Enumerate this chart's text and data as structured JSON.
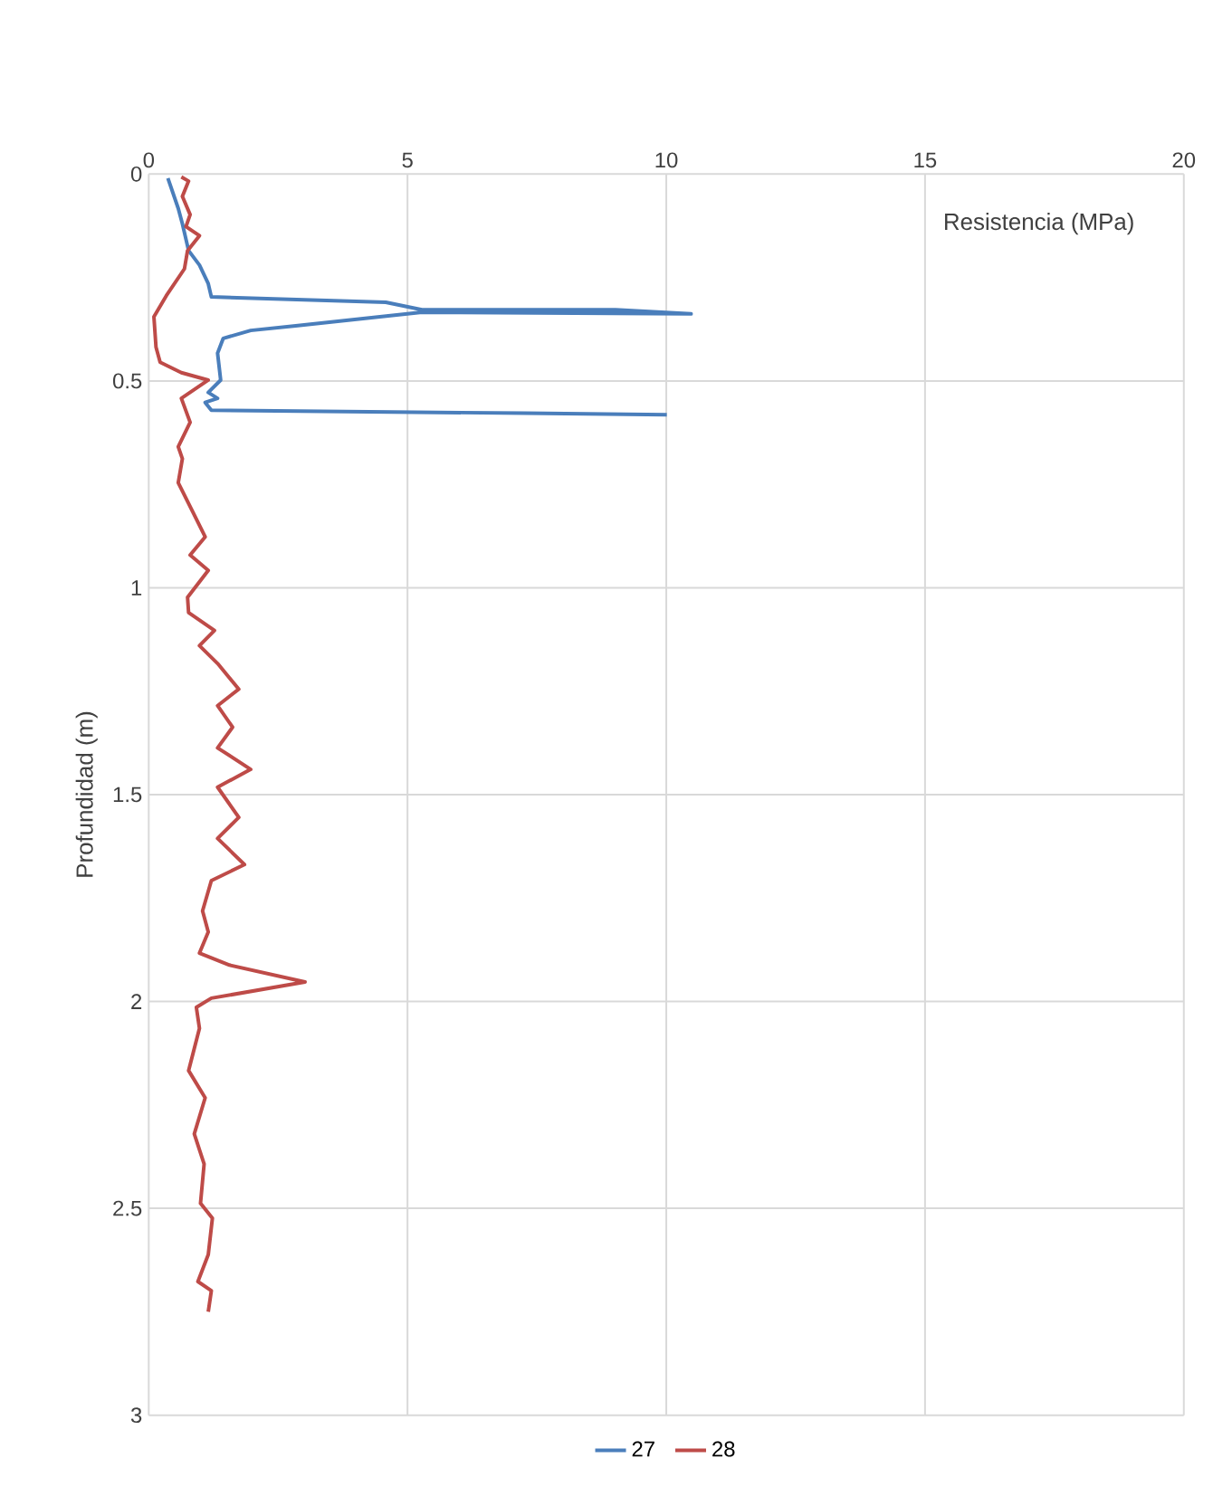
{
  "chart_data": {
    "type": "line",
    "xlabel": "Resistencia (MPa)",
    "ylabel": "Profundidad (m)",
    "xlim": [
      0,
      20
    ],
    "xticks": [
      0,
      5,
      10,
      15,
      20
    ],
    "ylim": [
      3,
      0
    ],
    "yticks": [
      0,
      0.5,
      1,
      1.5,
      2,
      2.5,
      3
    ],
    "grid": true,
    "legend": "bottom",
    "series": [
      {
        "name": "27",
        "color": "#4a7ebb",
        "x": [
          0.37,
          0.57,
          0.65,
          0.77,
          0.98,
          1.15,
          1.21,
          4.58,
          5.28,
          9.02,
          10.48,
          5.28,
          2.84,
          1.97,
          1.44,
          1.33,
          1.39,
          1.15,
          1.33,
          1.09,
          1.21,
          7.27,
          10.01
        ],
        "values": [
          0.01,
          0.083,
          0.12,
          0.185,
          0.22,
          0.265,
          0.297,
          0.31,
          0.328,
          0.328,
          0.338,
          0.334,
          0.367,
          0.378,
          0.397,
          0.433,
          0.498,
          0.528,
          0.542,
          0.552,
          0.571,
          0.578,
          0.582
        ]
      },
      {
        "name": "28",
        "color": "#be4b48",
        "x": [
          0.63,
          0.77,
          0.65,
          0.8,
          0.72,
          0.98,
          0.75,
          0.69,
          0.34,
          0.1,
          0.14,
          0.22,
          0.63,
          1.15,
          0.63,
          0.8,
          0.57,
          0.65,
          0.57,
          0.86,
          1.09,
          0.8,
          1.15,
          0.75,
          0.77,
          1.27,
          0.98,
          1.33,
          1.74,
          1.33,
          1.62,
          1.33,
          1.97,
          1.33,
          1.74,
          1.33,
          1.85,
          1.21,
          1.04,
          1.15,
          0.98,
          1.56,
          3.02,
          1.21,
          0.92,
          0.98,
          0.77,
          1.09,
          0.88,
          1.07,
          1.0,
          1.23,
          1.15,
          0.95,
          1.21,
          1.15
        ],
        "values": [
          0.007,
          0.017,
          0.054,
          0.098,
          0.127,
          0.149,
          0.185,
          0.229,
          0.294,
          0.345,
          0.418,
          0.455,
          0.48,
          0.498,
          0.542,
          0.6,
          0.659,
          0.688,
          0.746,
          0.819,
          0.877,
          0.921,
          0.958,
          1.023,
          1.06,
          1.103,
          1.14,
          1.183,
          1.245,
          1.285,
          1.337,
          1.387,
          1.439,
          1.482,
          1.555,
          1.606,
          1.669,
          1.708,
          1.781,
          1.832,
          1.883,
          1.912,
          1.953,
          1.992,
          2.014,
          2.065,
          2.167,
          2.233,
          2.32,
          2.393,
          2.488,
          2.524,
          2.612,
          2.677,
          2.699,
          2.75
        ]
      }
    ]
  }
}
